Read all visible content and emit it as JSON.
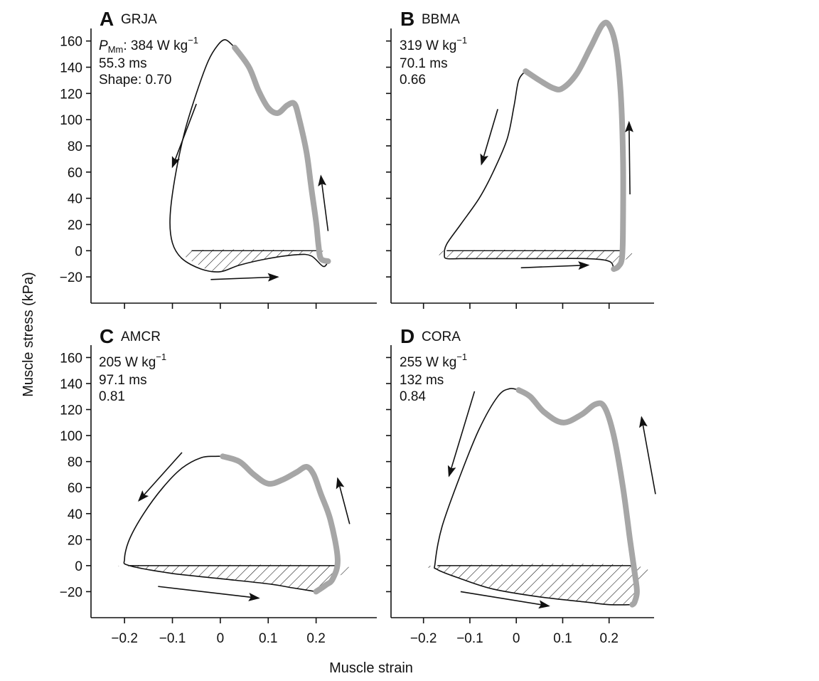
{
  "figure": {
    "xlabel": "Muscle strain",
    "ylabel": "Muscle stress (kPa)"
  },
  "chart_data": [
    {
      "type": "line",
      "panel": "A",
      "species": "GRJA",
      "annotations": {
        "power_prefix": "P",
        "power_subscript": "Mm",
        "power_value": ": 384 W kg",
        "power_exp": "−1",
        "duration": "55.3 ms",
        "shape": "Shape: 0.70"
      },
      "xlim": [
        -0.27,
        0.3
      ],
      "ylim": [
        -40,
        175
      ],
      "x_ticks": [
        -0.2,
        -0.1,
        0,
        0.1,
        0.2
      ],
      "x_tick_labels": [
        "−0.2",
        "−0.1",
        "0",
        "0.1",
        "0.2"
      ],
      "y_ticks": [
        -20,
        0,
        20,
        40,
        60,
        80,
        100,
        120,
        140,
        160
      ],
      "y_tick_labels": [
        "−20",
        "0",
        "20",
        "40",
        "60",
        "80",
        "100",
        "120",
        "140",
        "160"
      ],
      "show_y_labels": true,
      "show_x_labels": false,
      "shortening_thick": [
        [
          0.03,
          155
        ],
        [
          0.06,
          140
        ],
        [
          0.08,
          122
        ],
        [
          0.1,
          109
        ],
        [
          0.12,
          105
        ],
        [
          0.14,
          111
        ],
        [
          0.155,
          112
        ],
        [
          0.165,
          100
        ],
        [
          0.18,
          75
        ],
        [
          0.19,
          48
        ],
        [
          0.2,
          22
        ],
        [
          0.205,
          4
        ],
        [
          0.21,
          -6
        ],
        [
          0.225,
          -8
        ]
      ],
      "thin_loop": [
        [
          0.225,
          -8
        ],
        [
          0.215,
          -12
        ],
        [
          0.19,
          -4
        ],
        [
          0.16,
          -3
        ],
        [
          0.1,
          -6
        ],
        [
          0.04,
          -11
        ],
        [
          0,
          -16
        ],
        [
          -0.04,
          -14
        ],
        [
          -0.08,
          -6
        ],
        [
          -0.1,
          6
        ],
        [
          -0.105,
          25
        ],
        [
          -0.095,
          55
        ],
        [
          -0.075,
          90
        ],
        [
          -0.05,
          120
        ],
        [
          -0.025,
          145
        ],
        [
          -0.005,
          157
        ],
        [
          0.01,
          161
        ],
        [
          0.025,
          157
        ],
        [
          0.03,
          155
        ]
      ],
      "negative_work": [
        [
          -0.06,
          0
        ],
        [
          0.21,
          0
        ],
        [
          0.17,
          -3
        ],
        [
          0.1,
          -6
        ],
        [
          0.04,
          -11
        ],
        [
          0,
          -16
        ],
        [
          -0.04,
          -12
        ]
      ],
      "arrows": [
        {
          "from": [
            -0.05,
            112
          ],
          "to": [
            -0.1,
            64
          ]
        },
        {
          "from": [
            -0.02,
            -22
          ],
          "to": [
            0.12,
            -20
          ]
        },
        {
          "from": [
            0.225,
            15
          ],
          "to": [
            0.21,
            57
          ]
        }
      ]
    },
    {
      "type": "line",
      "panel": "B",
      "species": "BBMA",
      "annotations": {
        "power_value": "319 W kg",
        "power_exp": "−1",
        "duration": "70.1 ms",
        "shape": "0.66"
      },
      "xlim": [
        -0.27,
        0.3
      ],
      "ylim": [
        -40,
        175
      ],
      "x_ticks": [
        -0.2,
        -0.1,
        0,
        0.1,
        0.2
      ],
      "x_tick_labels": [
        "−0.2",
        "−0.1",
        "0",
        "0.1",
        "0.2"
      ],
      "y_ticks": [
        -20,
        0,
        20,
        40,
        60,
        80,
        100,
        120,
        140,
        160
      ],
      "y_tick_labels": [
        "−20",
        "0",
        "20",
        "40",
        "60",
        "80",
        "100",
        "120",
        "140",
        "160"
      ],
      "show_y_labels": false,
      "show_x_labels": false,
      "shortening_thick": [
        [
          0.02,
          137
        ],
        [
          0.05,
          130
        ],
        [
          0.08,
          124
        ],
        [
          0.1,
          124
        ],
        [
          0.13,
          135
        ],
        [
          0.16,
          155
        ],
        [
          0.185,
          172
        ],
        [
          0.2,
          172
        ],
        [
          0.215,
          155
        ],
        [
          0.225,
          120
        ],
        [
          0.23,
          70
        ],
        [
          0.23,
          20
        ],
        [
          0.228,
          -5
        ],
        [
          0.22,
          -12
        ],
        [
          0.21,
          -14
        ]
      ],
      "thin_loop": [
        [
          0.21,
          -14
        ],
        [
          0.2,
          -8
        ],
        [
          0.15,
          -6
        ],
        [
          0.05,
          -6
        ],
        [
          -0.05,
          -6
        ],
        [
          -0.12,
          -6
        ],
        [
          -0.15,
          -6
        ],
        [
          -0.155,
          -3
        ],
        [
          -0.15,
          5
        ],
        [
          -0.12,
          20
        ],
        [
          -0.08,
          40
        ],
        [
          -0.05,
          60
        ],
        [
          -0.02,
          85
        ],
        [
          -0.005,
          110
        ],
        [
          0.005,
          130
        ],
        [
          0.02,
          137
        ]
      ],
      "negative_work": [
        [
          -0.15,
          0
        ],
        [
          0.225,
          0
        ],
        [
          0.215,
          -10
        ],
        [
          0.2,
          -8
        ],
        [
          0.15,
          -6
        ],
        [
          0.05,
          -6
        ],
        [
          -0.05,
          -6
        ],
        [
          -0.12,
          -6
        ],
        [
          -0.15,
          -5
        ]
      ],
      "arrows": [
        {
          "from": [
            -0.04,
            108
          ],
          "to": [
            -0.075,
            66
          ]
        },
        {
          "from": [
            0.01,
            -13
          ],
          "to": [
            0.155,
            -11
          ]
        },
        {
          "from": [
            0.245,
            43
          ],
          "to": [
            0.243,
            98
          ]
        }
      ]
    },
    {
      "type": "line",
      "panel": "C",
      "species": "AMCR",
      "annotations": {
        "power_value": "205 W kg",
        "power_exp": "−1",
        "duration": "97.1 ms",
        "shape": "0.81"
      },
      "xlim": [
        -0.27,
        0.3
      ],
      "ylim": [
        -40,
        175
      ],
      "x_ticks": [
        -0.2,
        -0.1,
        0,
        0.1,
        0.2
      ],
      "x_tick_labels": [
        "−0.2",
        "−0.1",
        "0",
        "0.1",
        "0.2"
      ],
      "y_ticks": [
        -20,
        0,
        20,
        40,
        60,
        80,
        100,
        120,
        140,
        160
      ],
      "y_tick_labels": [
        "−20",
        "0",
        "20",
        "40",
        "60",
        "80",
        "100",
        "120",
        "140",
        "160"
      ],
      "show_y_labels": true,
      "show_x_labels": true,
      "shortening_thick": [
        [
          0.005,
          84
        ],
        [
          0.04,
          80
        ],
        [
          0.07,
          70
        ],
        [
          0.1,
          63
        ],
        [
          0.13,
          66
        ],
        [
          0.16,
          72
        ],
        [
          0.18,
          76
        ],
        [
          0.195,
          70
        ],
        [
          0.21,
          55
        ],
        [
          0.23,
          35
        ],
        [
          0.245,
          5
        ],
        [
          0.235,
          -10
        ],
        [
          0.22,
          -15
        ],
        [
          0.2,
          -20
        ]
      ],
      "thin_loop": [
        [
          0.2,
          -20
        ],
        [
          0.15,
          -17
        ],
        [
          0.1,
          -14
        ],
        [
          0,
          -10
        ],
        [
          -0.1,
          -6
        ],
        [
          -0.19,
          0
        ],
        [
          -0.2,
          5
        ],
        [
          -0.19,
          20
        ],
        [
          -0.16,
          40
        ],
        [
          -0.12,
          60
        ],
        [
          -0.08,
          75
        ],
        [
          -0.04,
          83
        ],
        [
          -0.01,
          84
        ],
        [
          0.005,
          84
        ]
      ],
      "negative_work": [
        [
          -0.19,
          0
        ],
        [
          0.245,
          0
        ],
        [
          0.235,
          -10
        ],
        [
          0.22,
          -15
        ],
        [
          0.2,
          -20
        ],
        [
          0.15,
          -17
        ],
        [
          0.1,
          -14
        ],
        [
          0,
          -10
        ],
        [
          -0.1,
          -6
        ],
        [
          -0.18,
          -1
        ]
      ],
      "arrows": [
        {
          "from": [
            -0.08,
            87
          ],
          "to": [
            -0.17,
            50
          ]
        },
        {
          "from": [
            -0.13,
            -16
          ],
          "to": [
            0.08,
            -25
          ]
        },
        {
          "from": [
            0.27,
            32
          ],
          "to": [
            0.245,
            67
          ]
        }
      ]
    },
    {
      "type": "line",
      "panel": "D",
      "species": "CORA",
      "annotations": {
        "power_value": "255 W kg",
        "power_exp": "−1",
        "duration": "132 ms",
        "shape": "0.84"
      },
      "xlim": [
        -0.27,
        0.3
      ],
      "ylim": [
        -40,
        175
      ],
      "x_ticks": [
        -0.2,
        -0.1,
        0,
        0.1,
        0.2
      ],
      "x_tick_labels": [
        "−0.2",
        "−0.1",
        "0",
        "0.1",
        "0.2"
      ],
      "y_ticks": [
        -20,
        0,
        20,
        40,
        60,
        80,
        100,
        120,
        140,
        160
      ],
      "y_tick_labels": [
        "−20",
        "0",
        "20",
        "40",
        "60",
        "80",
        "100",
        "120",
        "140",
        "160"
      ],
      "show_y_labels": false,
      "show_x_labels": true,
      "shortening_thick": [
        [
          0.005,
          135
        ],
        [
          0.03,
          130
        ],
        [
          0.06,
          118
        ],
        [
          0.1,
          110
        ],
        [
          0.14,
          116
        ],
        [
          0.17,
          124
        ],
        [
          0.19,
          122
        ],
        [
          0.21,
          100
        ],
        [
          0.23,
          60
        ],
        [
          0.245,
          20
        ],
        [
          0.255,
          -5
        ],
        [
          0.26,
          -20
        ],
        [
          0.255,
          -28
        ],
        [
          0.25,
          -30
        ]
      ],
      "thin_loop": [
        [
          0.25,
          -30
        ],
        [
          0.2,
          -30
        ],
        [
          0.15,
          -28
        ],
        [
          0.05,
          -24
        ],
        [
          -0.05,
          -18
        ],
        [
          -0.12,
          -10
        ],
        [
          -0.17,
          -3
        ],
        [
          -0.175,
          2
        ],
        [
          -0.16,
          30
        ],
        [
          -0.12,
          70
        ],
        [
          -0.08,
          105
        ],
        [
          -0.04,
          130
        ],
        [
          -0.015,
          136
        ],
        [
          0.005,
          135
        ]
      ],
      "negative_work": [
        [
          -0.17,
          0
        ],
        [
          0.255,
          0
        ],
        [
          0.26,
          -20
        ],
        [
          0.255,
          -28
        ],
        [
          0.2,
          -30
        ],
        [
          0.15,
          -28
        ],
        [
          0.05,
          -24
        ],
        [
          -0.05,
          -18
        ],
        [
          -0.12,
          -10
        ],
        [
          -0.17,
          -3
        ]
      ],
      "arrows": [
        {
          "from": [
            -0.09,
            134
          ],
          "to": [
            -0.145,
            69
          ]
        },
        {
          "from": [
            -0.12,
            -20
          ],
          "to": [
            0.07,
            -31
          ]
        },
        {
          "from": [
            0.3,
            55
          ],
          "to": [
            0.27,
            114
          ]
        }
      ]
    }
  ]
}
